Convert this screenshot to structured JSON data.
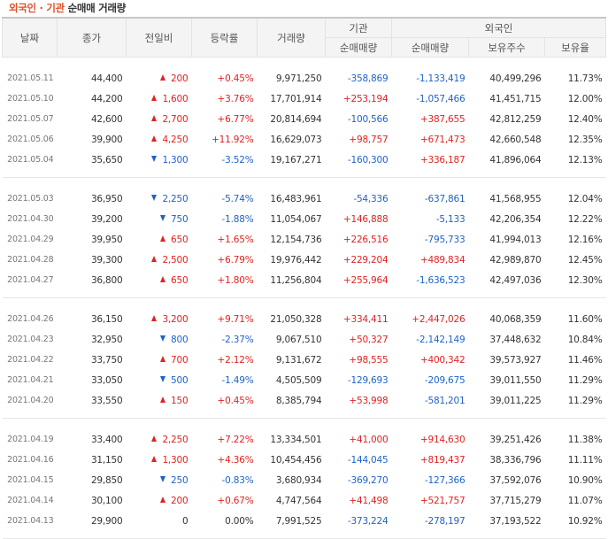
{
  "title": {
    "part1": "외국인 · 기관",
    "part2": "순매매 거래량"
  },
  "headers": {
    "date": "날짜",
    "close": "종가",
    "change": "전일비",
    "rate": "등락률",
    "volume": "거래량",
    "inst_group": "기관",
    "frgn_group": "외국인",
    "inst_net": "순매매량",
    "frgn_net": "순매매량",
    "frgn_hold": "보유주수",
    "frgn_ratio": "보유율"
  },
  "colors": {
    "up": "#e12222",
    "down": "#1f62c8"
  },
  "groups": [
    [
      {
        "date": "2021.05.11",
        "close": "44,400",
        "dir": "up",
        "change": "200",
        "rate": "+0.45%",
        "volume": "9,971,250",
        "inst": "-358,869",
        "frgn": "-1,133,419",
        "hold": "40,499,296",
        "ratio": "11.73%"
      },
      {
        "date": "2021.05.10",
        "close": "44,200",
        "dir": "up",
        "change": "1,600",
        "rate": "+3.76%",
        "volume": "17,701,914",
        "inst": "+253,194",
        "frgn": "-1,057,466",
        "hold": "41,451,715",
        "ratio": "12.00%"
      },
      {
        "date": "2021.05.07",
        "close": "42,600",
        "dir": "up",
        "change": "2,700",
        "rate": "+6.77%",
        "volume": "20,814,694",
        "inst": "-100,566",
        "frgn": "+387,655",
        "hold": "42,812,259",
        "ratio": "12.40%"
      },
      {
        "date": "2021.05.06",
        "close": "39,900",
        "dir": "up",
        "change": "4,250",
        "rate": "+11.92%",
        "volume": "16,629,073",
        "inst": "+98,757",
        "frgn": "+671,473",
        "hold": "42,660,548",
        "ratio": "12.35%"
      },
      {
        "date": "2021.05.04",
        "close": "35,650",
        "dir": "down",
        "change": "1,300",
        "rate": "-3.52%",
        "volume": "19,167,271",
        "inst": "-160,300",
        "frgn": "+336,187",
        "hold": "41,896,064",
        "ratio": "12.13%"
      }
    ],
    [
      {
        "date": "2021.05.03",
        "close": "36,950",
        "dir": "down",
        "change": "2,250",
        "rate": "-5.74%",
        "volume": "16,483,961",
        "inst": "-54,336",
        "frgn": "-637,861",
        "hold": "41,568,955",
        "ratio": "12.04%"
      },
      {
        "date": "2021.04.30",
        "close": "39,200",
        "dir": "down",
        "change": "750",
        "rate": "-1.88%",
        "volume": "11,054,067",
        "inst": "+146,888",
        "frgn": "-5,133",
        "hold": "42,206,354",
        "ratio": "12.22%"
      },
      {
        "date": "2021.04.29",
        "close": "39,950",
        "dir": "up",
        "change": "650",
        "rate": "+1.65%",
        "volume": "12,154,736",
        "inst": "+226,516",
        "frgn": "-795,733",
        "hold": "41,994,013",
        "ratio": "12.16%"
      },
      {
        "date": "2021.04.28",
        "close": "39,300",
        "dir": "up",
        "change": "2,500",
        "rate": "+6.79%",
        "volume": "19,976,442",
        "inst": "+229,204",
        "frgn": "+489,834",
        "hold": "42,989,870",
        "ratio": "12.45%"
      },
      {
        "date": "2021.04.27",
        "close": "36,800",
        "dir": "up",
        "change": "650",
        "rate": "+1.80%",
        "volume": "11,256,804",
        "inst": "+255,964",
        "frgn": "-1,636,523",
        "hold": "42,497,036",
        "ratio": "12.30%"
      }
    ],
    [
      {
        "date": "2021.04.26",
        "close": "36,150",
        "dir": "up",
        "change": "3,200",
        "rate": "+9.71%",
        "volume": "21,050,328",
        "inst": "+334,411",
        "frgn": "+2,447,026",
        "hold": "40,068,359",
        "ratio": "11.60%"
      },
      {
        "date": "2021.04.23",
        "close": "32,950",
        "dir": "down",
        "change": "800",
        "rate": "-2.37%",
        "volume": "9,067,510",
        "inst": "+50,327",
        "frgn": "-2,142,149",
        "hold": "37,448,632",
        "ratio": "10.84%"
      },
      {
        "date": "2021.04.22",
        "close": "33,750",
        "dir": "up",
        "change": "700",
        "rate": "+2.12%",
        "volume": "9,131,672",
        "inst": "+98,555",
        "frgn": "+400,342",
        "hold": "39,573,927",
        "ratio": "11.46%"
      },
      {
        "date": "2021.04.21",
        "close": "33,050",
        "dir": "down",
        "change": "500",
        "rate": "-1.49%",
        "volume": "4,505,509",
        "inst": "-129,693",
        "frgn": "-209,675",
        "hold": "39,011,550",
        "ratio": "11.29%"
      },
      {
        "date": "2021.04.20",
        "close": "33,550",
        "dir": "up",
        "change": "150",
        "rate": "+0.45%",
        "volume": "8,385,794",
        "inst": "+53,998",
        "frgn": "-581,201",
        "hold": "39,011,225",
        "ratio": "11.29%"
      }
    ],
    [
      {
        "date": "2021.04.19",
        "close": "33,400",
        "dir": "up",
        "change": "2,250",
        "rate": "+7.22%",
        "volume": "13,334,501",
        "inst": "+41,000",
        "frgn": "+914,630",
        "hold": "39,251,426",
        "ratio": "11.38%"
      },
      {
        "date": "2021.04.16",
        "close": "31,150",
        "dir": "up",
        "change": "1,300",
        "rate": "+4.36%",
        "volume": "10,454,456",
        "inst": "-144,045",
        "frgn": "+819,437",
        "hold": "38,336,796",
        "ratio": "11.11%"
      },
      {
        "date": "2021.04.15",
        "close": "29,850",
        "dir": "down",
        "change": "250",
        "rate": "-0.83%",
        "volume": "3,680,934",
        "inst": "-369,270",
        "frgn": "-127,366",
        "hold": "37,592,076",
        "ratio": "10.90%"
      },
      {
        "date": "2021.04.14",
        "close": "30,100",
        "dir": "up",
        "change": "200",
        "rate": "+0.67%",
        "volume": "4,747,564",
        "inst": "+41,498",
        "frgn": "+521,757",
        "hold": "37,715,279",
        "ratio": "11.07%"
      },
      {
        "date": "2021.04.13",
        "close": "29,900",
        "dir": "none",
        "change": "0",
        "rate": "0.00%",
        "volume": "7,991,525",
        "inst": "-373,224",
        "frgn": "-278,197",
        "hold": "37,193,522",
        "ratio": "10.92%"
      }
    ]
  ]
}
